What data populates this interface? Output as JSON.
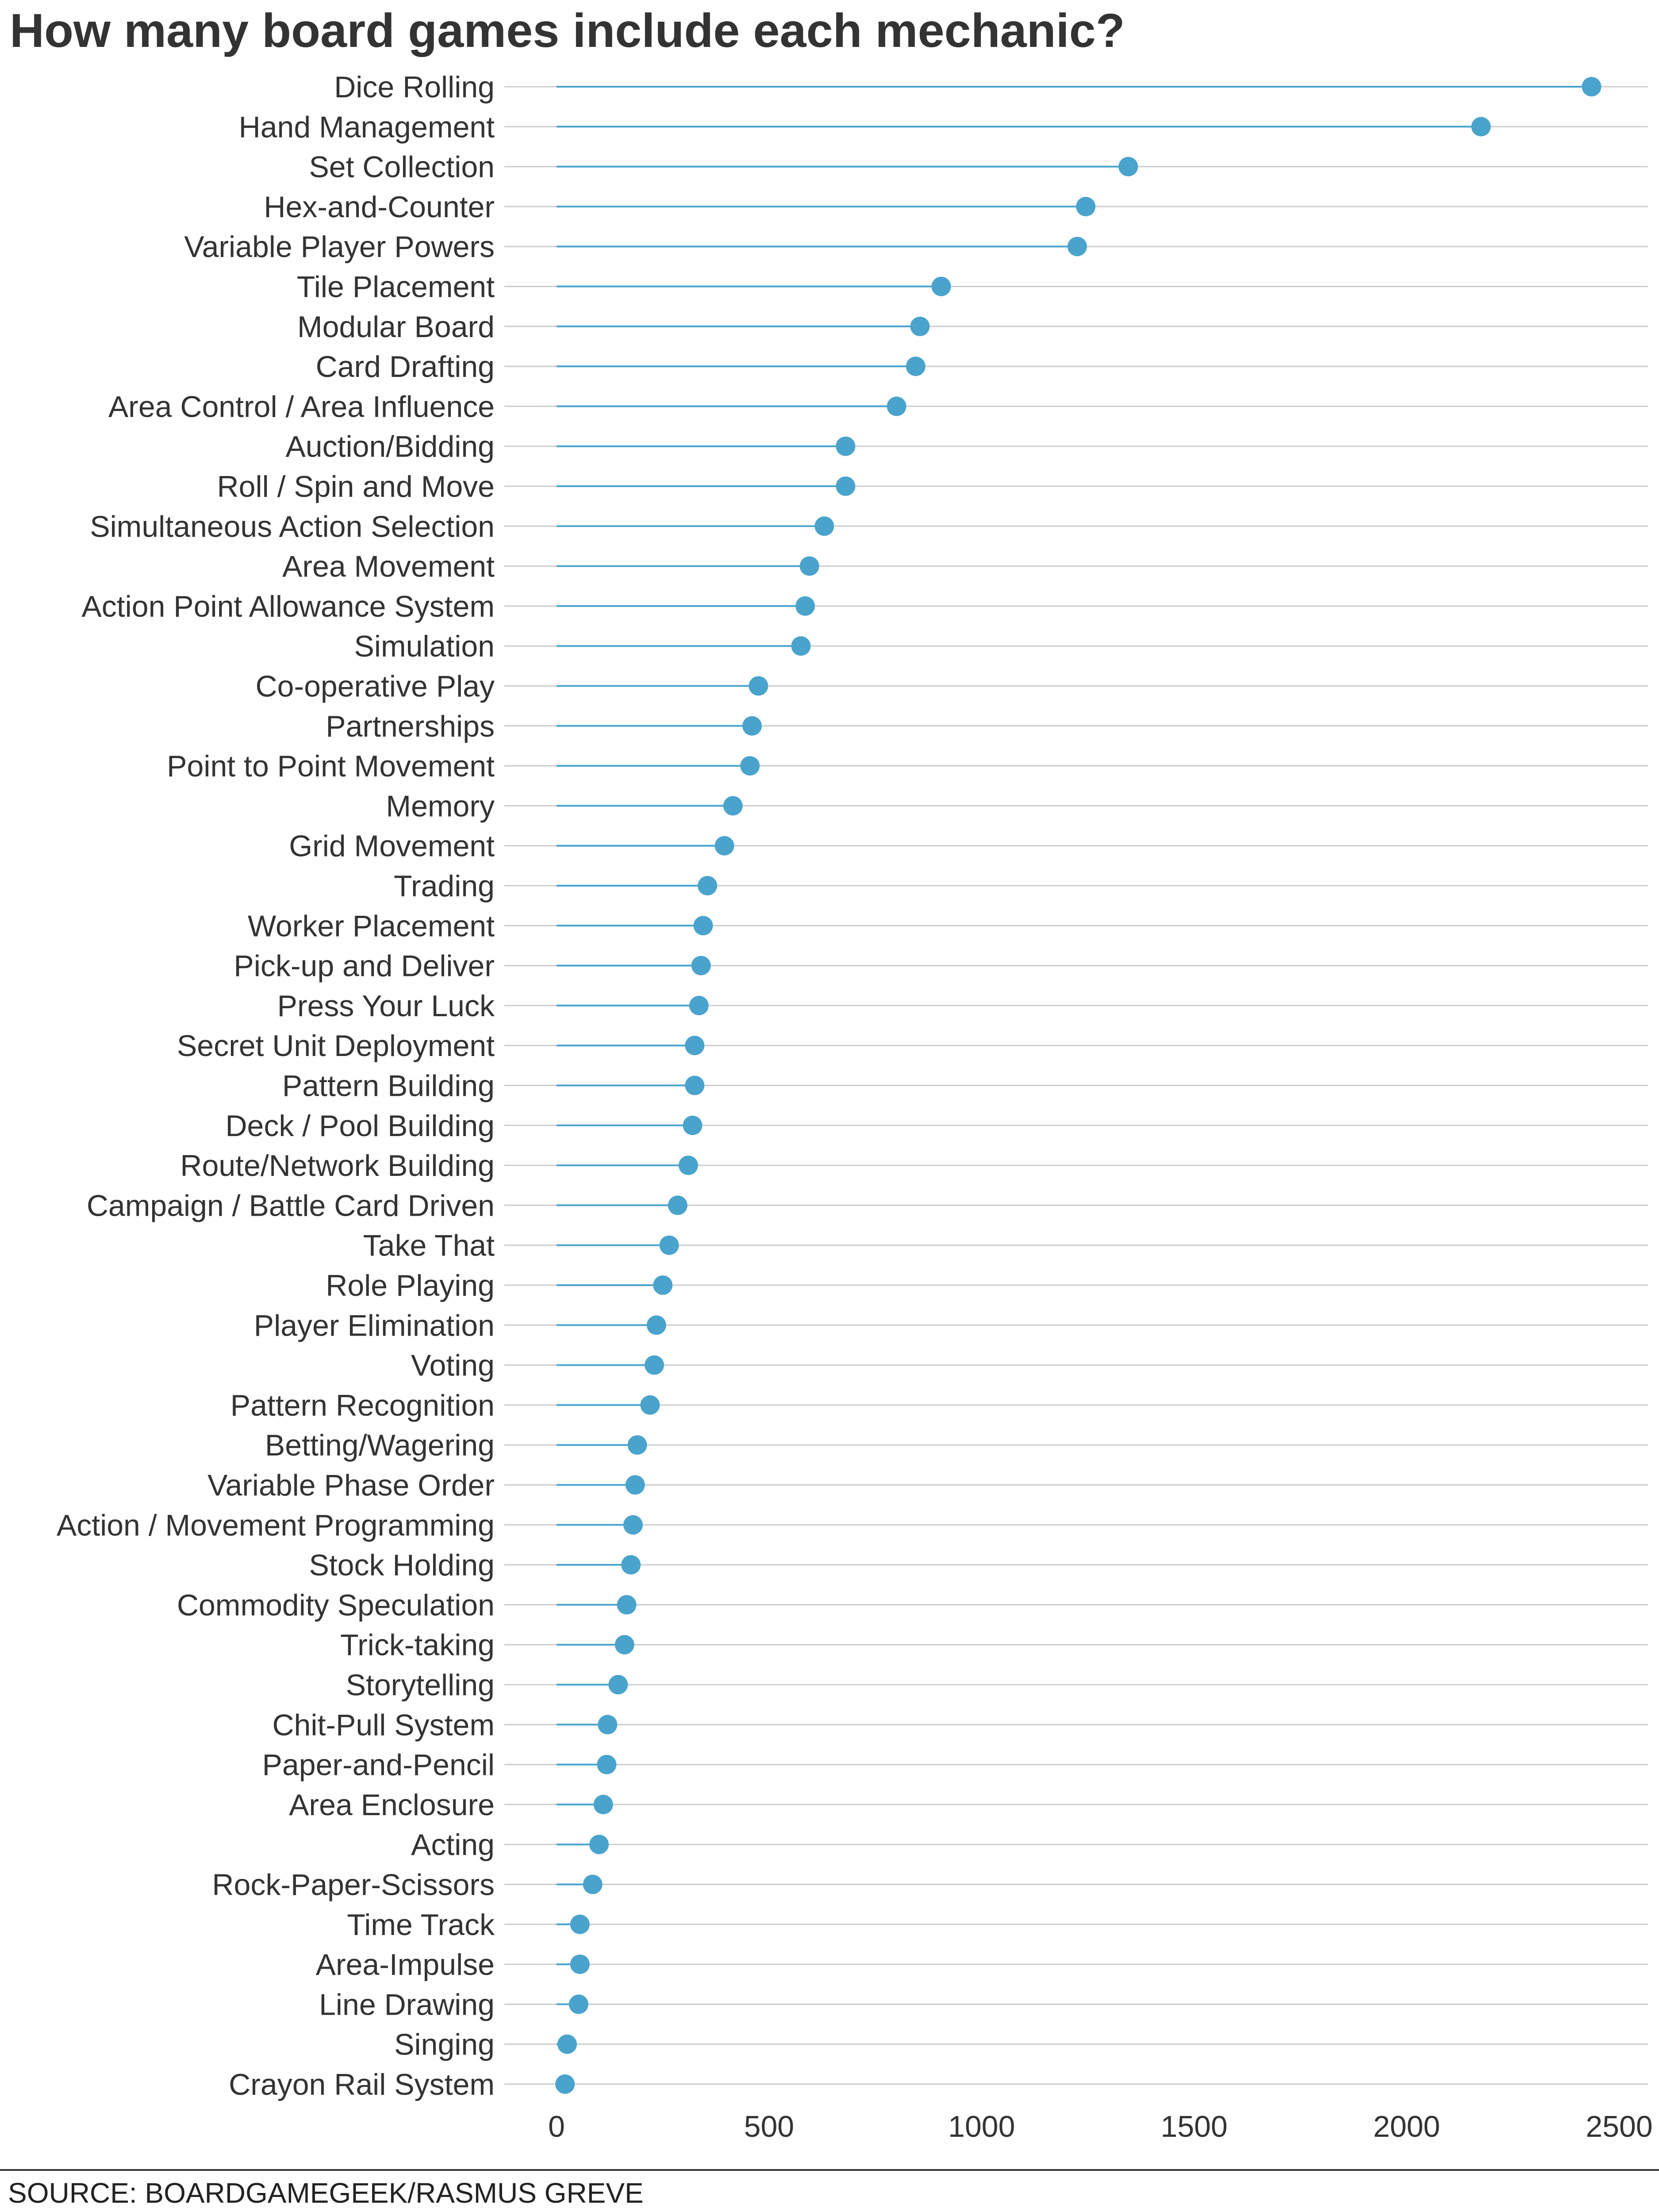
{
  "title": "How many board games include each mechanic?",
  "source": "SOURCE: BOARDGAMEGEEK/RASMUS GREVE",
  "colors": {
    "dot": "#4aa3cc",
    "stem": "#4aa3cc",
    "grid": "#cccccc",
    "text": "#333333",
    "axis_line": "#333333"
  },
  "chart_data": {
    "type": "lollipop",
    "orientation": "horizontal",
    "categories": [
      "Dice Rolling",
      "Hand Management",
      "Set Collection",
      "Hex-and-Counter",
      "Variable Player Powers",
      "Tile Placement",
      "Modular Board",
      "Card Drafting",
      "Area Control / Area Influence",
      "Auction/Bidding",
      "Roll / Spin and Move",
      "Simultaneous Action Selection",
      "Area Movement",
      "Action Point Allowance System",
      "Simulation",
      "Co-operative Play",
      "Partnerships",
      "Point to Point Movement",
      "Memory",
      "Grid Movement",
      "Trading",
      "Worker Placement",
      "Pick-up and Deliver",
      "Press Your Luck",
      "Secret Unit Deployment",
      "Pattern Building",
      "Deck / Pool Building",
      "Route/Network Building",
      "Campaign / Battle Card Driven",
      "Take That",
      "Role Playing",
      "Player Elimination",
      "Voting",
      "Pattern Recognition",
      "Betting/Wagering",
      "Variable Phase Order",
      "Action / Movement Programming",
      "Stock Holding",
      "Commodity Speculation",
      "Trick-taking",
      "Storytelling",
      "Chit-Pull System",
      "Paper-and-Pencil",
      "Area Enclosure",
      "Acting",
      "Rock-Paper-Scissors",
      "Time Track",
      "Area-Impulse",
      "Line Drawing",
      "Singing",
      "Crayon Rail System"
    ],
    "values": [
      2435,
      2175,
      1345,
      1245,
      1225,
      905,
      855,
      845,
      800,
      680,
      680,
      630,
      595,
      585,
      575,
      475,
      460,
      455,
      415,
      395,
      355,
      345,
      340,
      335,
      325,
      325,
      320,
      310,
      285,
      265,
      250,
      235,
      230,
      220,
      190,
      185,
      180,
      175,
      165,
      160,
      145,
      120,
      118,
      110,
      100,
      85,
      55,
      55,
      52,
      25,
      20
    ],
    "x_ticks": [
      0,
      500,
      1000,
      1500,
      2000,
      2500
    ],
    "x_tick_labels": [
      "0",
      "500",
      "1000",
      "1500",
      "2000",
      "2500"
    ],
    "xlim": [
      0,
      2500
    ],
    "xlabel": "",
    "ylabel": "",
    "grid": "horizontal lines at each category",
    "legend": "none"
  }
}
